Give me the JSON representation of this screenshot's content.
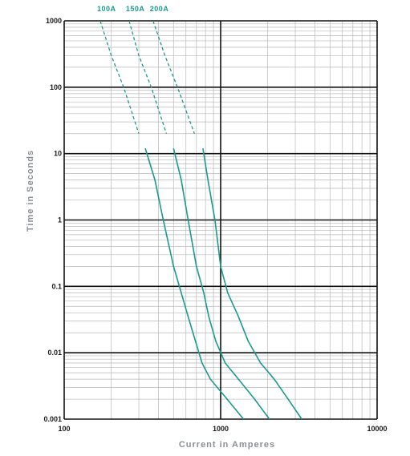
{
  "chart_data": {
    "type": "line",
    "x_scale": "log",
    "y_scale": "log",
    "xlim": [
      100,
      10000
    ],
    "ylim": [
      0.001,
      1000
    ],
    "xlabel": "Current in Amperes",
    "ylabel": "Time in Seconds",
    "x_ticks": [
      "100",
      "1000",
      "10000"
    ],
    "y_ticks": [
      "0.001",
      "0.01",
      "0.1",
      "1",
      "10",
      "100",
      "1000"
    ],
    "grid": true,
    "legend_position": "top",
    "line_color": "#1a9a8c",
    "series": [
      {
        "name": "100A",
        "dashed": [
          [
            170,
            1000
          ],
          [
            200,
            300
          ],
          [
            240,
            100
          ],
          [
            300,
            20
          ]
        ],
        "solid": [
          [
            330,
            12
          ],
          [
            380,
            4
          ],
          [
            430,
            1
          ],
          [
            500,
            0.2
          ],
          [
            560,
            0.08
          ],
          [
            620,
            0.035
          ],
          [
            690,
            0.015
          ],
          [
            760,
            0.007
          ],
          [
            860,
            0.004
          ],
          [
            1100,
            0.002
          ],
          [
            1400,
            0.001
          ]
        ]
      },
      {
        "name": "150A",
        "dashed": [
          [
            260,
            1000
          ],
          [
            300,
            300
          ],
          [
            360,
            100
          ],
          [
            450,
            20
          ]
        ],
        "solid": [
          [
            500,
            12
          ],
          [
            560,
            4
          ],
          [
            620,
            1
          ],
          [
            700,
            0.2
          ],
          [
            780,
            0.08
          ],
          [
            840,
            0.035
          ],
          [
            930,
            0.015
          ],
          [
            1070,
            0.007
          ],
          [
            1300,
            0.004
          ],
          [
            1650,
            0.002
          ],
          [
            2050,
            0.001
          ]
        ]
      },
      {
        "name": "200A",
        "dashed": [
          [
            370,
            1000
          ],
          [
            440,
            300
          ],
          [
            530,
            100
          ],
          [
            680,
            20
          ]
        ],
        "solid": [
          [
            770,
            12
          ],
          [
            830,
            4
          ],
          [
            920,
            1
          ],
          [
            1000,
            0.2
          ],
          [
            1110,
            0.08
          ],
          [
            1300,
            0.035
          ],
          [
            1500,
            0.015
          ],
          [
            1800,
            0.007
          ],
          [
            2200,
            0.004
          ],
          [
            2700,
            0.002
          ],
          [
            3300,
            0.001
          ]
        ]
      }
    ]
  }
}
